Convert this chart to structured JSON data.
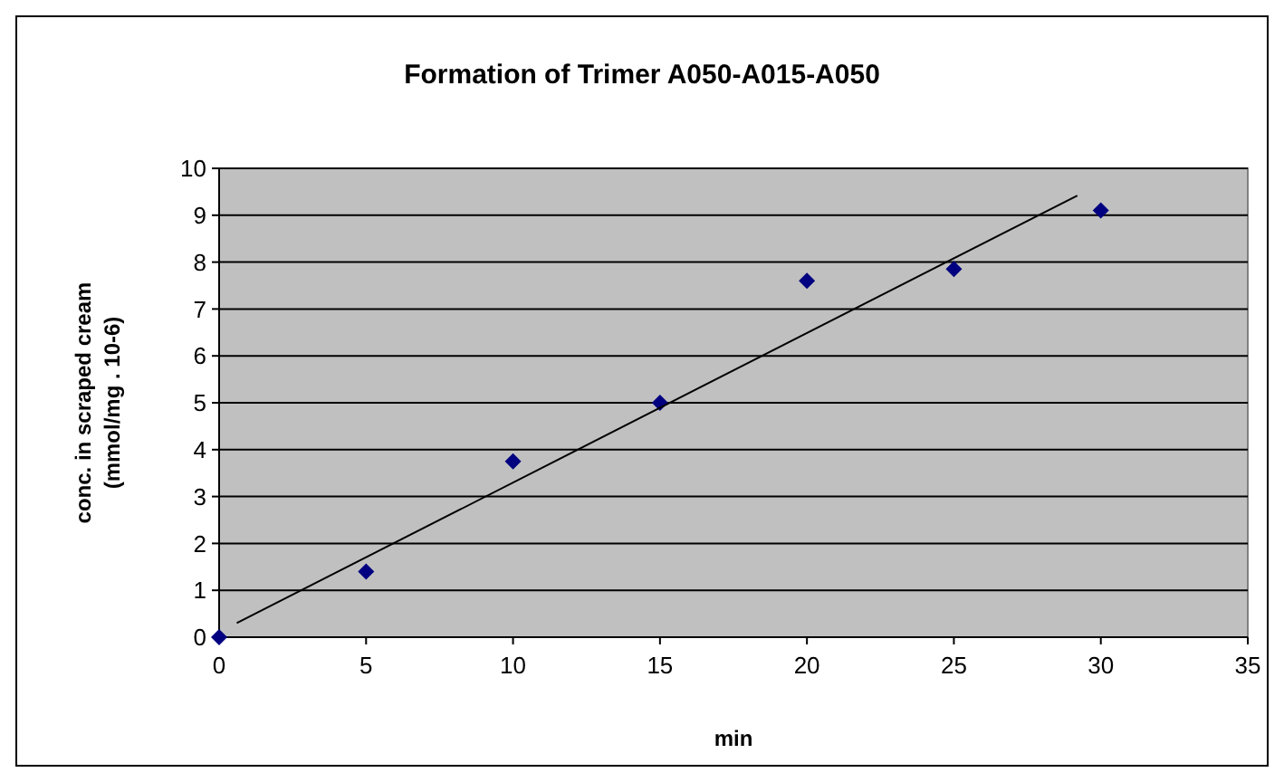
{
  "chart_data": {
    "type": "scatter",
    "title": "Formation of Trimer A050-A015-A050",
    "xlabel": "min",
    "ylabel": "conc. in scraped cream\n(mmol/mg . 10-6)",
    "series": [
      {
        "color": "#000080",
        "x": [
          0,
          5,
          10,
          15,
          20,
          25,
          30
        ],
        "values": [
          0,
          1.4,
          3.75,
          5.0,
          7.6,
          7.85,
          9.1
        ],
        "marker": "diamond"
      },
      {
        "type": "line",
        "color": "#000000",
        "x": [
          0.6,
          29.2
        ],
        "values": [
          0.3,
          9.42
        ],
        "marker": "none",
        "line_style": "solid"
      }
    ],
    "xlim": [
      0,
      35
    ],
    "xticks": [
      0,
      5,
      10,
      15,
      20,
      25,
      30,
      35
    ],
    "ylim": [
      0,
      10
    ],
    "yticks": [
      0,
      1,
      2,
      3,
      4,
      5,
      6,
      7,
      8,
      9,
      10
    ],
    "grid": "y"
  }
}
